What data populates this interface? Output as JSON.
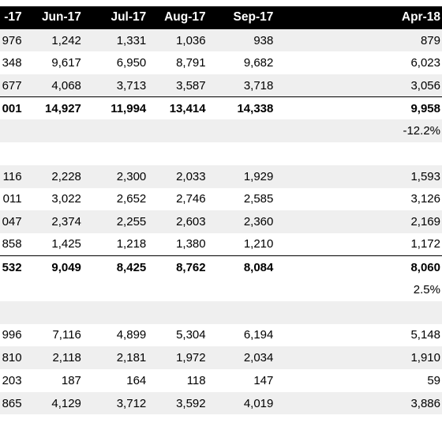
{
  "headers": [
    "-17",
    "Jun-17",
    "Jul-17",
    "Aug-17",
    "Sep-17",
    "Apr-18"
  ],
  "rows": [
    {
      "cells": [
        "976",
        "1,242",
        "1,331",
        "1,036",
        "938",
        "879"
      ],
      "shade": true,
      "bold": false,
      "topline": false
    },
    {
      "cells": [
        "348",
        "9,617",
        "6,950",
        "8,791",
        "9,682",
        "6,023"
      ],
      "shade": false,
      "bold": false,
      "topline": false
    },
    {
      "cells": [
        "677",
        "4,068",
        "3,713",
        "3,587",
        "3,718",
        "3,056"
      ],
      "shade": true,
      "bold": false,
      "topline": false
    },
    {
      "cells": [
        "001",
        "14,927",
        "11,994",
        "13,414",
        "14,338",
        "9,958"
      ],
      "shade": false,
      "bold": true,
      "topline": true
    },
    {
      "cells": [
        "",
        "",
        "",
        "",
        "",
        "-12.2%"
      ],
      "shade": true,
      "bold": false,
      "topline": false
    },
    {
      "cells": [
        "",
        "",
        "",
        "",
        "",
        ""
      ],
      "shade": false,
      "bold": false,
      "topline": false
    },
    {
      "cells": [
        "116",
        "2,228",
        "2,300",
        "2,033",
        "1,929",
        "1,593"
      ],
      "shade": true,
      "bold": false,
      "topline": false
    },
    {
      "cells": [
        "011",
        "3,022",
        "2,652",
        "2,746",
        "2,585",
        "3,126"
      ],
      "shade": false,
      "bold": false,
      "topline": false
    },
    {
      "cells": [
        "047",
        "2,374",
        "2,255",
        "2,603",
        "2,360",
        "2,169"
      ],
      "shade": true,
      "bold": false,
      "topline": false
    },
    {
      "cells": [
        "858",
        "1,425",
        "1,218",
        "1,380",
        "1,210",
        "1,172"
      ],
      "shade": false,
      "bold": false,
      "topline": false
    },
    {
      "cells": [
        "532",
        "9,049",
        "8,425",
        "8,762",
        "8,084",
        "8,060"
      ],
      "shade": false,
      "bold": true,
      "topline": true
    },
    {
      "cells": [
        "",
        "",
        "",
        "",
        "",
        "2.5%"
      ],
      "shade": false,
      "bold": false,
      "topline": false
    },
    {
      "cells": [
        "",
        "",
        "",
        "",
        "",
        ""
      ],
      "shade": true,
      "bold": false,
      "topline": false
    },
    {
      "cells": [
        "996",
        "7,116",
        "4,899",
        "5,304",
        "6,194",
        "5,148"
      ],
      "shade": false,
      "bold": false,
      "topline": false
    },
    {
      "cells": [
        "810",
        "2,118",
        "2,181",
        "1,972",
        "2,034",
        "1,910"
      ],
      "shade": true,
      "bold": false,
      "topline": false
    },
    {
      "cells": [
        "203",
        "187",
        "164",
        "118",
        "147",
        "59"
      ],
      "shade": false,
      "bold": false,
      "topline": false
    },
    {
      "cells": [
        "865",
        "4,129",
        "3,712",
        "3,592",
        "4,019",
        "3,886"
      ],
      "shade": true,
      "bold": false,
      "topline": false
    }
  ]
}
